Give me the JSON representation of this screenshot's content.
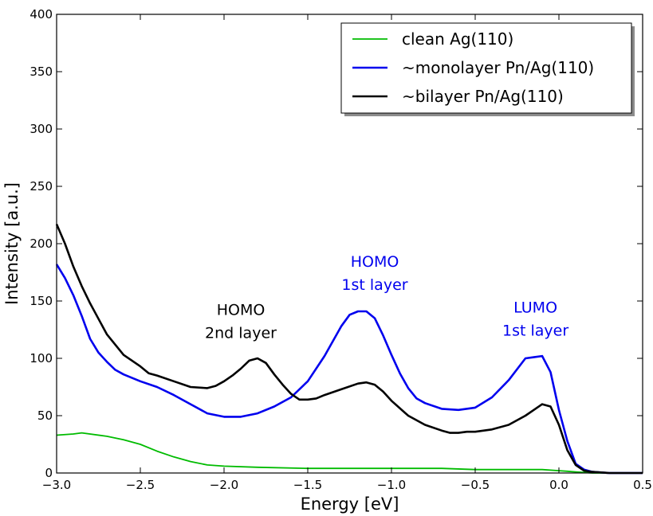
{
  "chart_data": {
    "type": "line",
    "title": "",
    "xlabel": "Energy [eV]",
    "ylabel": "Intensity [a.u.]",
    "xlim": [
      -3.0,
      0.5
    ],
    "ylim": [
      0,
      400
    ],
    "xticks": [
      -3.0,
      -2.5,
      -2.0,
      -1.5,
      -1.0,
      -0.5,
      0.0,
      0.5
    ],
    "xtick_labels": [
      "−3.0",
      "−2.5",
      "−2.0",
      "−1.5",
      "−1.0",
      "−0.5",
      "0.0",
      "0.5"
    ],
    "yticks": [
      0,
      50,
      100,
      150,
      200,
      250,
      300,
      350,
      400
    ],
    "ytick_labels": [
      "0",
      "50",
      "100",
      "150",
      "200",
      "250",
      "300",
      "350",
      "400"
    ],
    "grid": false,
    "legend_position": "top-right",
    "series": [
      {
        "name": "clean Ag(110)",
        "color": "#00bb00",
        "x": [
          -3.0,
          -2.9,
          -2.85,
          -2.7,
          -2.6,
          -2.5,
          -2.4,
          -2.3,
          -2.2,
          -2.1,
          -2.0,
          -1.8,
          -1.5,
          -1.2,
          -1.0,
          -0.7,
          -0.5,
          -0.3,
          -0.1,
          0.0,
          0.05,
          0.1,
          0.15,
          0.2,
          0.3,
          0.5
        ],
        "y": [
          33,
          34,
          35,
          32,
          29,
          25,
          19,
          14,
          10,
          7,
          6,
          5,
          4,
          4,
          4,
          4,
          3,
          3,
          3,
          2,
          1.5,
          1,
          0.5,
          0,
          0,
          0
        ]
      },
      {
        "name": "~monolayer Pn/Ag(110)",
        "color": "#0000ee",
        "x": [
          -3.0,
          -2.95,
          -2.9,
          -2.85,
          -2.8,
          -2.75,
          -2.7,
          -2.65,
          -2.6,
          -2.5,
          -2.4,
          -2.3,
          -2.2,
          -2.1,
          -2.0,
          -1.9,
          -1.8,
          -1.7,
          -1.6,
          -1.5,
          -1.4,
          -1.3,
          -1.25,
          -1.2,
          -1.15,
          -1.1,
          -1.05,
          -1.0,
          -0.95,
          -0.9,
          -0.85,
          -0.8,
          -0.7,
          -0.6,
          -0.5,
          -0.4,
          -0.3,
          -0.2,
          -0.15,
          -0.1,
          -0.05,
          0.0,
          0.05,
          0.1,
          0.15,
          0.2,
          0.3,
          0.5
        ],
        "y": [
          182,
          170,
          155,
          137,
          117,
          105,
          97,
          90,
          86,
          80,
          75,
          68,
          60,
          52,
          49,
          49,
          52,
          58,
          66,
          80,
          102,
          128,
          138,
          141,
          141,
          135,
          120,
          103,
          87,
          74,
          65,
          61,
          56,
          55,
          57,
          66,
          81,
          100,
          101,
          102,
          88,
          55,
          28,
          8,
          3,
          1,
          0,
          0
        ]
      },
      {
        "name": "~bilayer Pn/Ag(110)",
        "color": "#000000",
        "x": [
          -3.0,
          -2.95,
          -2.9,
          -2.85,
          -2.8,
          -2.7,
          -2.6,
          -2.5,
          -2.45,
          -2.4,
          -2.3,
          -2.2,
          -2.1,
          -2.05,
          -2.0,
          -1.95,
          -1.9,
          -1.85,
          -1.8,
          -1.75,
          -1.7,
          -1.65,
          -1.6,
          -1.55,
          -1.5,
          -1.45,
          -1.4,
          -1.3,
          -1.2,
          -1.15,
          -1.1,
          -1.05,
          -1.0,
          -0.9,
          -0.8,
          -0.7,
          -0.65,
          -0.6,
          -0.55,
          -0.5,
          -0.4,
          -0.3,
          -0.2,
          -0.15,
          -0.1,
          -0.05,
          0.0,
          0.05,
          0.1,
          0.15,
          0.2,
          0.3,
          0.5
        ],
        "y": [
          217,
          200,
          180,
          163,
          148,
          121,
          103,
          93,
          87,
          85,
          80,
          75,
          74,
          76,
          80,
          85,
          91,
          98,
          100,
          96,
          86,
          77,
          69,
          64,
          64,
          65,
          68,
          73,
          78,
          79,
          77,
          71,
          63,
          50,
          42,
          37,
          35,
          35,
          36,
          36,
          38,
          42,
          50,
          55,
          60,
          58,
          42,
          20,
          7,
          2,
          1,
          0,
          0
        ]
      }
    ],
    "annotations": [
      {
        "lines": [
          "HOMO",
          "2nd layer"
        ],
        "x": -1.9,
        "y": 138,
        "color": "#000000"
      },
      {
        "lines": [
          "HOMO",
          "1st layer"
        ],
        "x": -1.1,
        "y": 180,
        "color": "#0000ee"
      },
      {
        "lines": [
          "LUMO",
          "1st layer"
        ],
        "x": -0.14,
        "y": 140,
        "color": "#0000ee"
      }
    ]
  }
}
